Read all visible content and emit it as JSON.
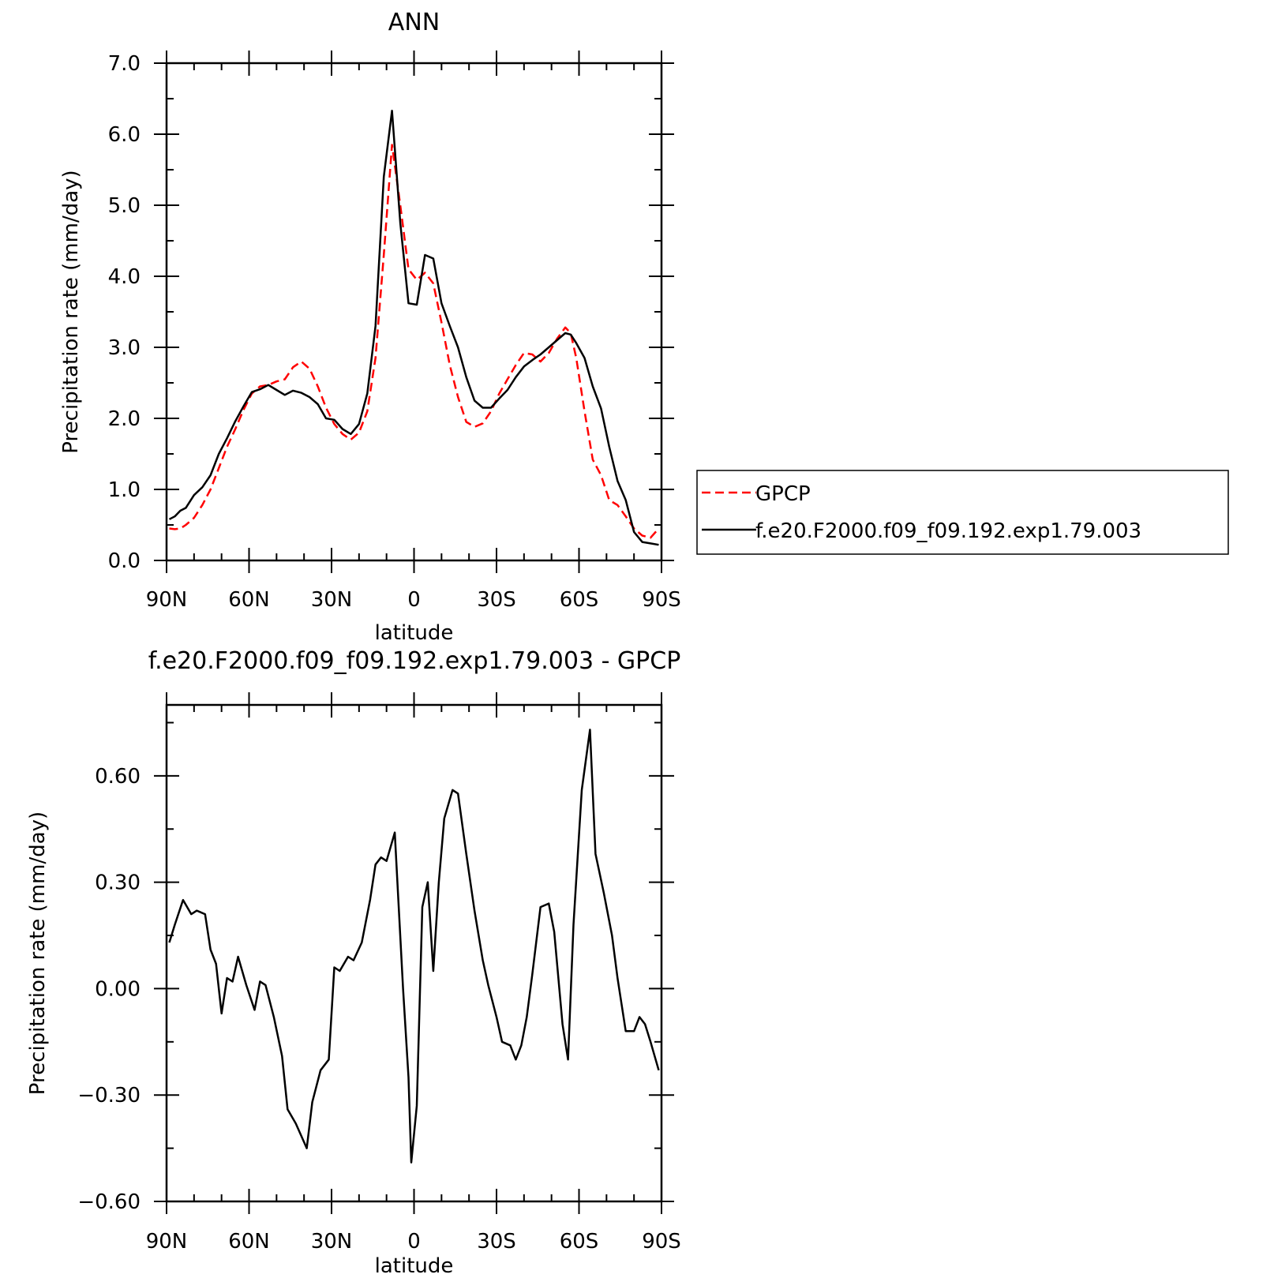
{
  "chart_data": [
    {
      "type": "line",
      "title": "ANN",
      "xlabel": "latitude",
      "ylabel": "Precipitation rate (mm/day)",
      "xlim": [
        90,
        -90
      ],
      "ylim": [
        0,
        7
      ],
      "x_ticks": [
        {
          "value": 90,
          "label": "90N"
        },
        {
          "value": 60,
          "label": "60N"
        },
        {
          "value": 30,
          "label": "30N"
        },
        {
          "value": 0,
          "label": "0"
        },
        {
          "value": -30,
          "label": "30S"
        },
        {
          "value": -60,
          "label": "60S"
        },
        {
          "value": -90,
          "label": "90S"
        }
      ],
      "y_ticks": [
        {
          "value": 0,
          "label": "0.0"
        },
        {
          "value": 1,
          "label": "1.0"
        },
        {
          "value": 2,
          "label": "2.0"
        },
        {
          "value": 3,
          "label": "3.0"
        },
        {
          "value": 4,
          "label": "4.0"
        },
        {
          "value": 5,
          "label": "5.0"
        },
        {
          "value": 6,
          "label": "6.0"
        },
        {
          "value": 7,
          "label": "7.0"
        }
      ],
      "legend": {
        "placement": "right"
      },
      "series": [
        {
          "name": "GPCP",
          "color": "#ff0000",
          "dash": "dashed",
          "x": [
            89,
            87,
            85,
            83,
            80,
            77,
            74,
            71,
            68,
            65,
            62,
            59,
            56,
            53,
            50,
            47,
            44,
            41,
            38,
            35,
            32,
            29,
            26,
            23,
            20,
            17,
            14,
            11,
            8,
            5,
            2,
            -1,
            -4,
            -7,
            -10,
            -13,
            -16,
            -19,
            -22,
            -25,
            -28,
            -31,
            -34,
            -37,
            -40,
            -43,
            -46,
            -49,
            -52,
            -55,
            -57,
            -59,
            -62,
            -65,
            -68,
            -71,
            -74,
            -77,
            -80,
            -83,
            -86,
            -89
          ],
          "y": [
            0.45,
            0.44,
            0.45,
            0.5,
            0.6,
            0.78,
            1.0,
            1.3,
            1.6,
            1.85,
            2.12,
            2.35,
            2.45,
            2.47,
            2.52,
            2.55,
            2.72,
            2.8,
            2.7,
            2.45,
            2.15,
            1.92,
            1.78,
            1.7,
            1.8,
            2.1,
            2.85,
            4.3,
            5.85,
            5.0,
            4.1,
            3.95,
            4.05,
            3.9,
            3.35,
            2.75,
            2.3,
            1.95,
            1.88,
            1.93,
            2.1,
            2.35,
            2.55,
            2.75,
            2.92,
            2.9,
            2.8,
            2.92,
            3.12,
            3.28,
            3.2,
            2.85,
            2.1,
            1.42,
            1.2,
            0.85,
            0.78,
            0.62,
            0.45,
            0.35,
            0.32,
            0.45
          ]
        },
        {
          "name": "f.e20.F2000.f09_f09.192.exp1.79.003",
          "color": "#000000",
          "dash": "solid",
          "x": [
            89,
            87,
            85,
            83,
            80,
            77,
            74,
            71,
            68,
            65,
            62,
            59,
            56,
            53,
            50,
            47,
            44,
            41,
            38,
            35,
            32,
            29,
            26,
            23,
            20,
            17,
            14,
            11,
            8,
            5,
            2,
            -1,
            -4,
            -7,
            -10,
            -13,
            -16,
            -19,
            -22,
            -25,
            -28,
            -31,
            -34,
            -37,
            -40,
            -43,
            -46,
            -49,
            -52,
            -55,
            -57,
            -59,
            -62,
            -65,
            -68,
            -71,
            -74,
            -77,
            -80,
            -83,
            -86,
            -89
          ],
          "y": [
            0.58,
            0.62,
            0.7,
            0.74,
            0.92,
            1.03,
            1.2,
            1.5,
            1.72,
            1.96,
            2.17,
            2.37,
            2.41,
            2.47,
            2.4,
            2.33,
            2.39,
            2.36,
            2.3,
            2.2,
            2.0,
            1.98,
            1.85,
            1.78,
            1.92,
            2.35,
            3.3,
            5.4,
            6.33,
            4.75,
            3.62,
            3.6,
            4.3,
            4.25,
            3.62,
            3.3,
            3.0,
            2.58,
            2.25,
            2.15,
            2.15,
            2.28,
            2.4,
            2.58,
            2.73,
            2.82,
            2.9,
            3.0,
            3.1,
            3.2,
            3.18,
            3.06,
            2.85,
            2.45,
            2.14,
            1.6,
            1.12,
            0.85,
            0.4,
            0.26,
            0.24,
            0.22
          ]
        }
      ]
    },
    {
      "type": "line",
      "title": "f.e20.F2000.f09_f09.192.exp1.79.003 - GPCP",
      "xlabel": "latitude",
      "ylabel": "Precipitation rate (mm/day)",
      "xlim": [
        90,
        -90
      ],
      "ylim": [
        -0.6,
        0.8
      ],
      "x_ticks": [
        {
          "value": 90,
          "label": "90N"
        },
        {
          "value": 60,
          "label": "60N"
        },
        {
          "value": 30,
          "label": "30N"
        },
        {
          "value": 0,
          "label": "0"
        },
        {
          "value": -30,
          "label": "30S"
        },
        {
          "value": -60,
          "label": "60S"
        },
        {
          "value": -90,
          "label": "90S"
        }
      ],
      "y_ticks": [
        {
          "value": -0.6,
          "label": "−0.60"
        },
        {
          "value": -0.3,
          "label": "−0.30"
        },
        {
          "value": 0,
          "label": "0.00"
        },
        {
          "value": 0.3,
          "label": "0.30"
        },
        {
          "value": 0.6,
          "label": "0.60"
        }
      ],
      "series": [
        {
          "color": "#000000",
          "dash": "solid",
          "x": [
            89,
            87,
            84,
            81,
            79,
            76,
            74,
            72,
            70,
            68,
            66,
            64,
            61,
            58,
            56,
            54,
            51,
            48,
            46,
            43,
            39,
            37,
            34,
            31,
            29,
            27,
            24,
            22,
            19,
            16,
            14,
            12,
            10,
            7,
            4,
            2,
            1,
            -1,
            -3,
            -5,
            -7,
            -9,
            -11,
            -14,
            -16,
            -19,
            -22,
            -25,
            -27,
            -30,
            -32,
            -35,
            -37,
            -39,
            -41,
            -43,
            -46,
            -49,
            -51,
            -54,
            -56,
            -58,
            -61,
            -64,
            -66,
            -69,
            -72,
            -74,
            -77,
            -80,
            -82,
            -84,
            -86,
            -89
          ],
          "y": [
            0.13,
            0.18,
            0.25,
            0.21,
            0.22,
            0.21,
            0.11,
            0.07,
            -0.07,
            0.03,
            0.02,
            0.09,
            0.01,
            -0.06,
            0.02,
            0.01,
            -0.08,
            -0.19,
            -0.34,
            -0.38,
            -0.45,
            -0.32,
            -0.23,
            -0.2,
            0.06,
            0.05,
            0.09,
            0.08,
            0.13,
            0.25,
            0.35,
            0.37,
            0.36,
            0.44,
            0.0,
            -0.25,
            -0.49,
            -0.33,
            0.23,
            0.3,
            0.05,
            0.3,
            0.48,
            0.56,
            0.55,
            0.38,
            0.22,
            0.08,
            0.01,
            -0.08,
            -0.15,
            -0.16,
            -0.2,
            -0.16,
            -0.08,
            0.04,
            0.23,
            0.24,
            0.16,
            -0.1,
            -0.2,
            0.18,
            0.56,
            0.73,
            0.38,
            0.27,
            0.15,
            0.03,
            -0.12,
            -0.12,
            -0.08,
            -0.1,
            -0.15,
            -0.23
          ]
        }
      ]
    }
  ]
}
